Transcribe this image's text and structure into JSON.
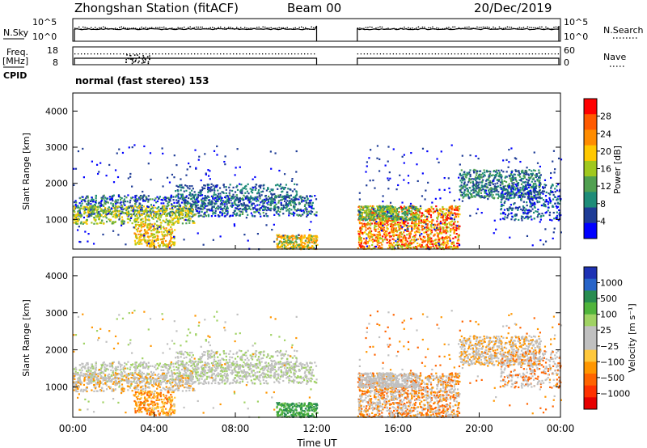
{
  "header": {
    "title": "Zhongshan Station (fitACF)",
    "beam": "Beam 00",
    "date": "20/Dec/2019"
  },
  "left_labels": {
    "nsky": "N.Sky",
    "freq_line1": "Freq.",
    "freq_line2": "[MHz]",
    "cpid": "CPID"
  },
  "right_labels": {
    "nsearch": "N.Search",
    "nave": "Nave"
  },
  "cpid_text": "normal (fast stereo) 153",
  "chart_data": [
    {
      "type": "line",
      "panel": "noise",
      "y_tick_labels": [
        "10^5",
        "10^0"
      ],
      "right_tick_labels": [
        "10^5",
        "10^0"
      ],
      "series": [],
      "note_values": "sky noise ~ 10^2, search noise ~ 10^2.3, gap 12:00-14:00"
    },
    {
      "type": "line",
      "panel": "frequency",
      "y_tick_labels": [
        "18",
        "8"
      ],
      "right_tick_labels": [
        "60",
        "0"
      ],
      "freq_mhz": 10.0,
      "nave": 40
    },
    {
      "type": "heatmap",
      "panel": "power",
      "ylabel": "Slant Range [km]",
      "colorbar_label": "Power [dB]",
      "colorbar_ticks": [
        "28",
        "24",
        "20",
        "16",
        "12",
        "8",
        "4"
      ],
      "colorbar_colors": [
        "#ff0000",
        "#ff5a00",
        "#ff8c00",
        "#ffc800",
        "#a0c81e",
        "#50a050",
        "#1e8c78",
        "#1e3c96",
        "#0000ff"
      ],
      "yticks": [
        "4000",
        "3000",
        "2000",
        "1000"
      ],
      "ylim": [
        180,
        4500
      ]
    },
    {
      "type": "heatmap",
      "panel": "velocity",
      "ylabel": "Slant Range [km]",
      "colorbar_label": "Velocity [m s⁻¹]",
      "colorbar_ticks": [
        "1000",
        "500",
        "100",
        "25",
        "−25",
        "−100",
        "−500",
        "−1000"
      ],
      "colorbar_colors": [
        "#1e32b4",
        "#2864c8",
        "#288c50",
        "#50b43c",
        "#a0d264",
        "#c0c0c0",
        "#c0c0c0",
        "#ffc83c",
        "#ff9600",
        "#ff6400",
        "#ff3200",
        "#e60000"
      ],
      "yticks": [
        "4000",
        "3000",
        "2000",
        "1000"
      ],
      "ylim": [
        180,
        4500
      ]
    }
  ],
  "x_axis": {
    "ticks": [
      "00:00",
      "04:00",
      "08:00",
      "12:00",
      "16:00",
      "20:00",
      "00:00"
    ],
    "label": "Time UT",
    "data_gap": [
      "12:00",
      "14:00"
    ]
  }
}
